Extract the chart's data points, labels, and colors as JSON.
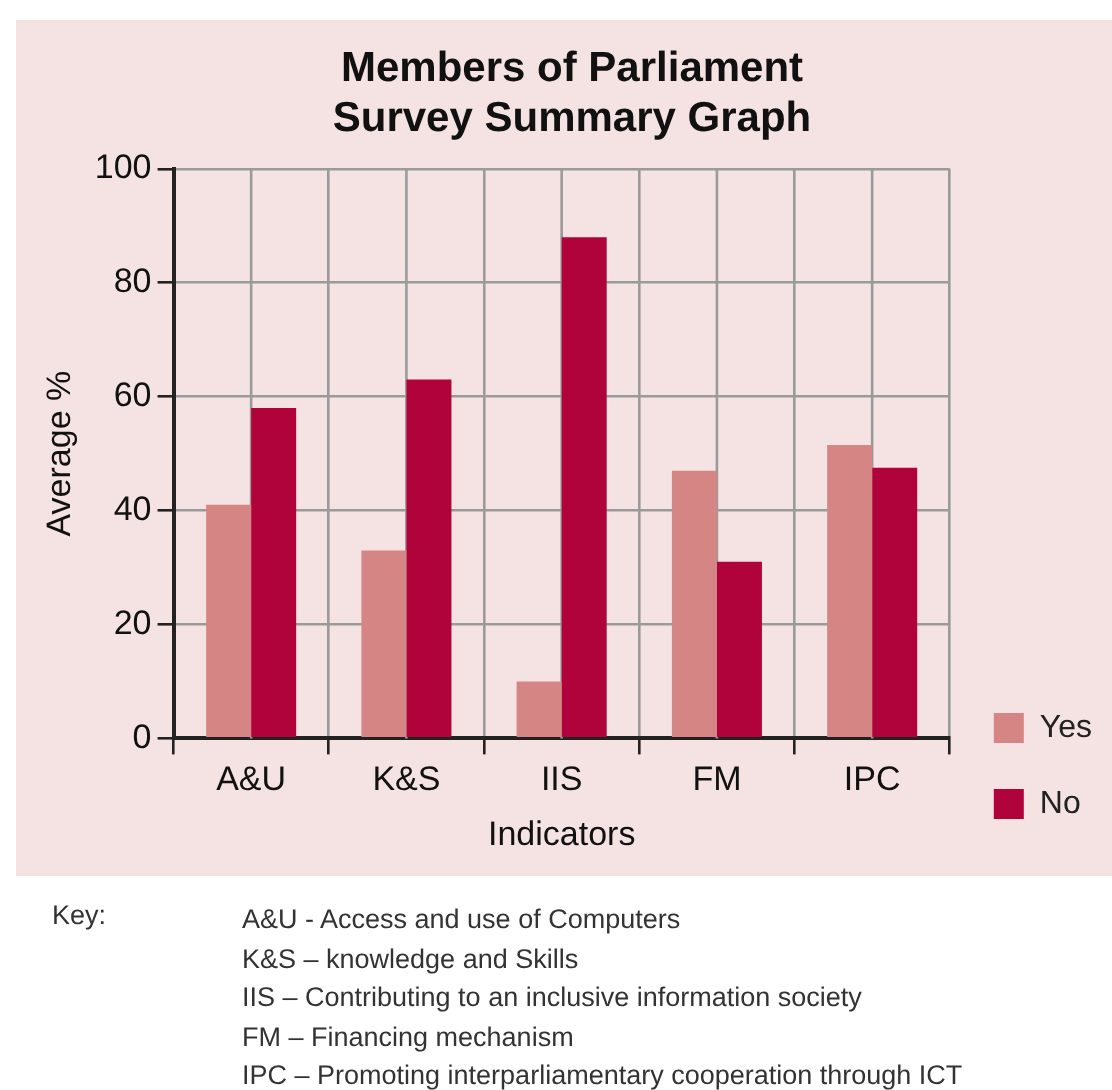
{
  "chart_data": {
    "type": "bar",
    "title": "Members of Parliament\nSurvey Summary Graph",
    "xlabel": "Indicators",
    "ylabel": "Average %",
    "categories": [
      "A&U",
      "K&S",
      "IIS",
      "FM",
      "IPC"
    ],
    "series": [
      {
        "name": "Yes",
        "color": "#d68585",
        "values": [
          41,
          33,
          10,
          47,
          51.5
        ]
      },
      {
        "name": "No",
        "color": "#b0033b",
        "values": [
          58,
          63,
          88,
          31,
          47.5
        ]
      }
    ],
    "ylim": [
      0,
      100
    ],
    "yticks": [
      0,
      20,
      40,
      60,
      80,
      100
    ],
    "grid": true,
    "legend": "right",
    "annotations": [
      "Key:",
      "A&U - Access and use of Computers",
      "K&S – knowledge and Skills",
      "IIS – Contributing to an inclusive information society",
      "FM – Financing mechanism",
      "IPC – Promoting interparliamentary cooperation through ICT"
    ]
  }
}
